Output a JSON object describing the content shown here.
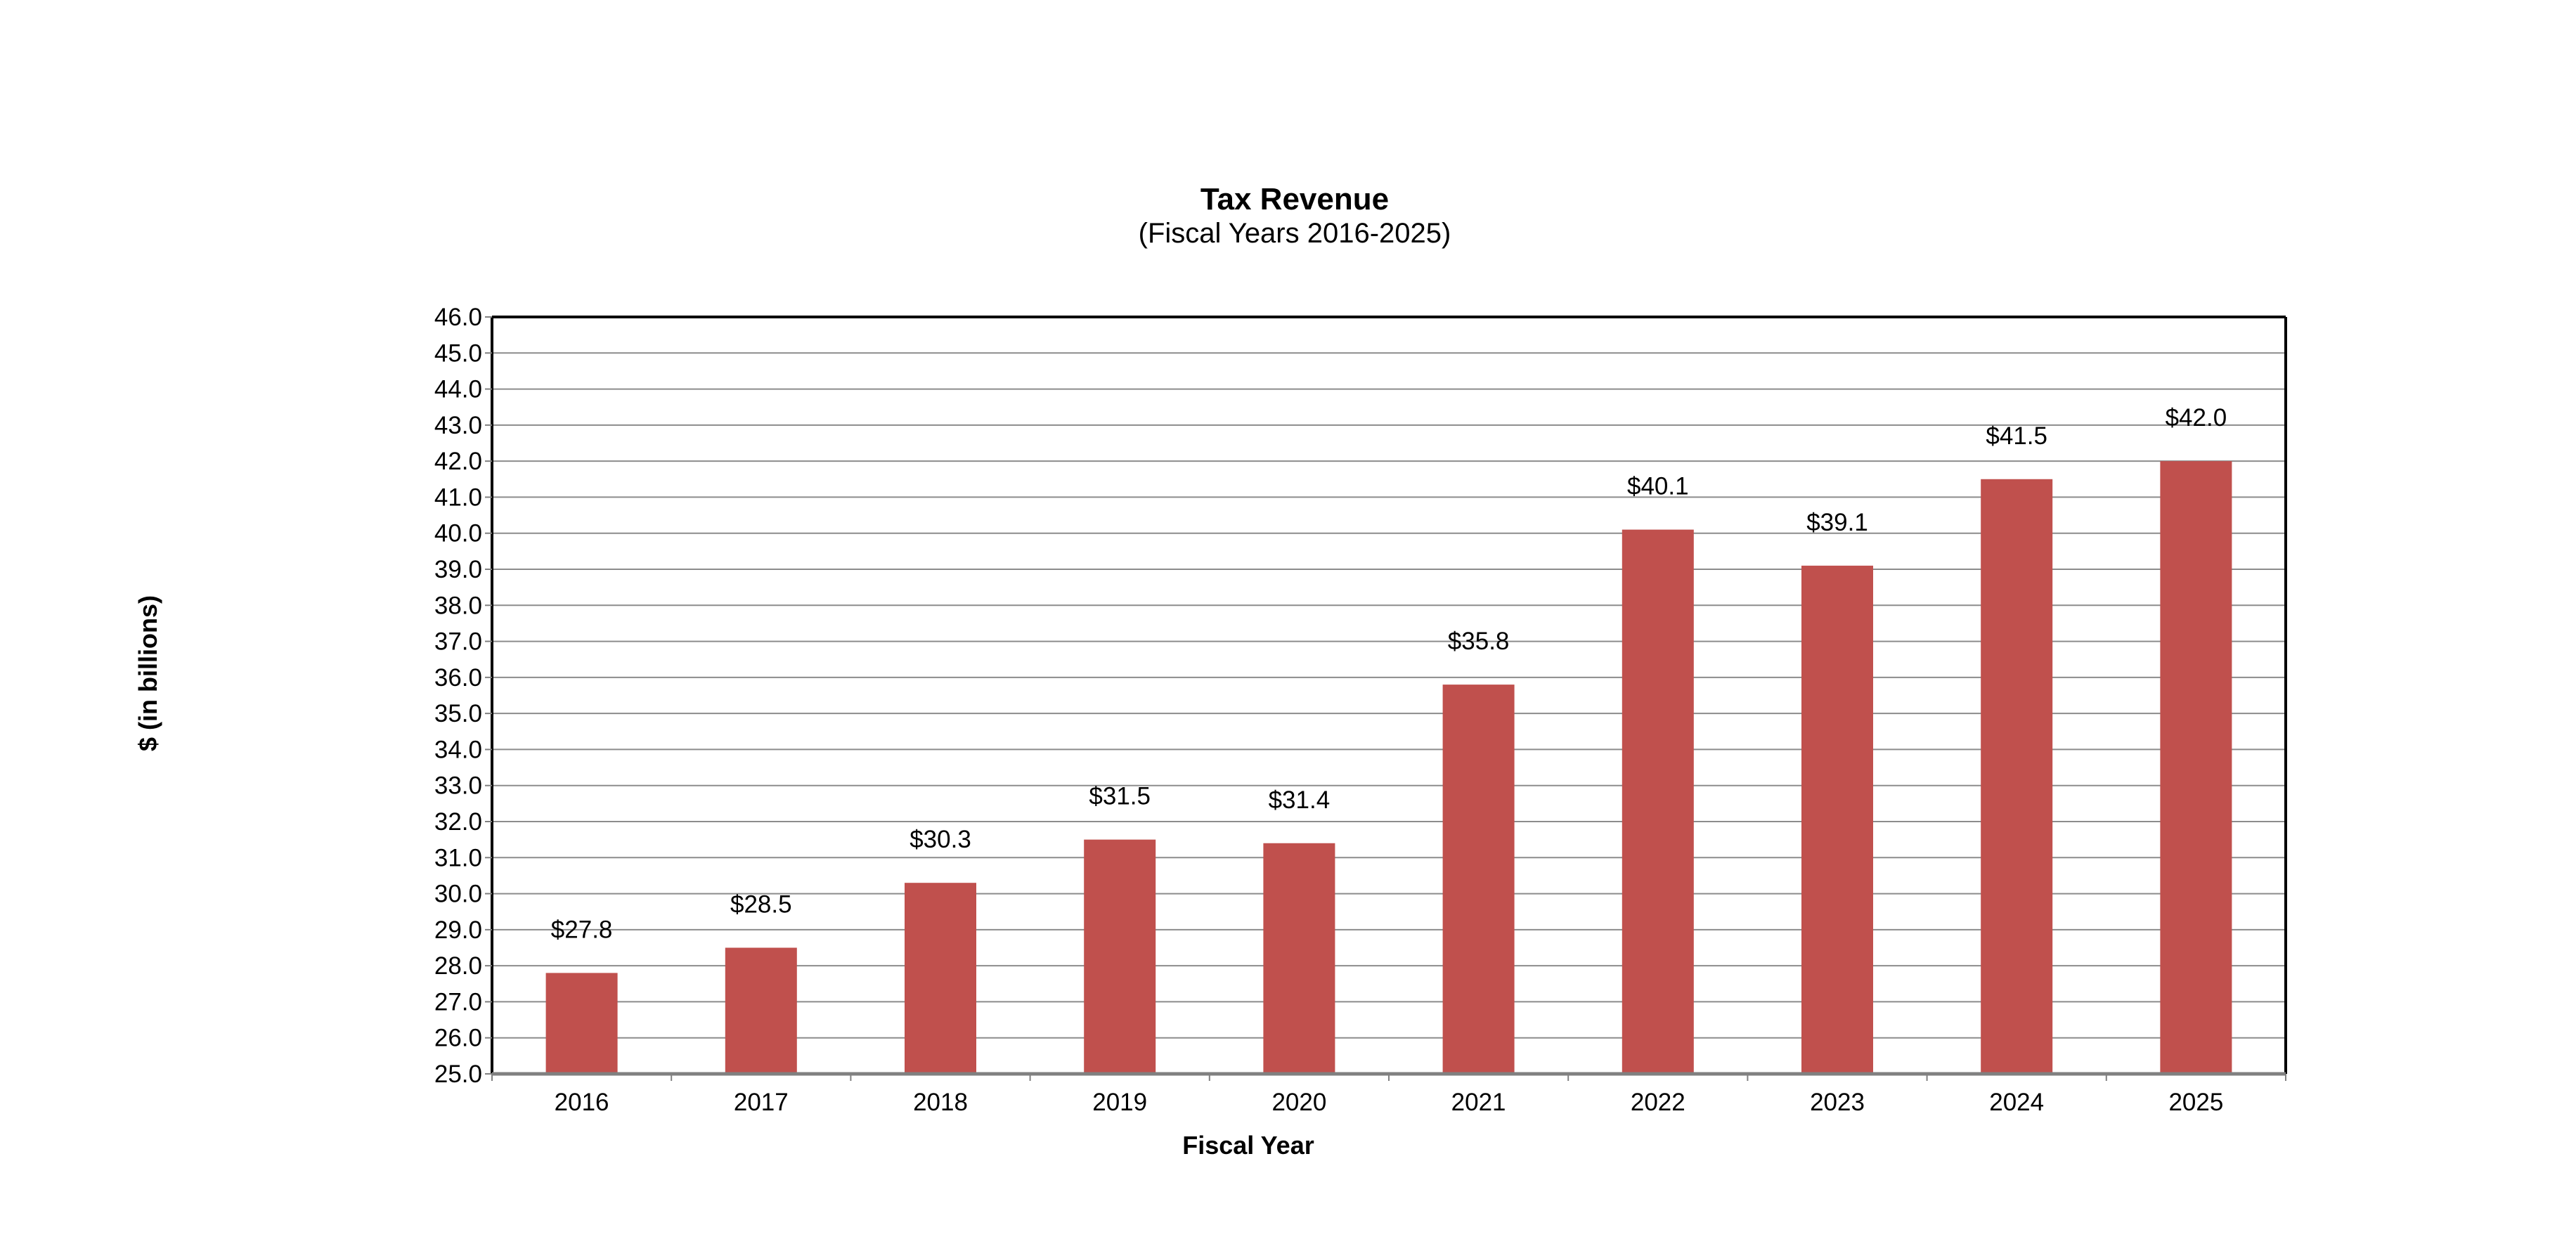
{
  "chart_data": {
    "type": "bar",
    "title": "Tax Revenue",
    "subtitle": "(Fiscal Years 2016-2025)",
    "xlabel": "Fiscal Year",
    "ylabel": "$ (in billions)",
    "categories": [
      "2016",
      "2017",
      "2018",
      "2019",
      "2020",
      "2021",
      "2022",
      "2023",
      "2024",
      "2025"
    ],
    "values": [
      27.8,
      28.5,
      30.3,
      31.5,
      31.4,
      35.8,
      40.1,
      39.1,
      41.5,
      42.0
    ],
    "data_labels": [
      "$27.8",
      "$28.5",
      "$30.3",
      "$31.5",
      "$31.4",
      "$35.8",
      "$40.1",
      "$39.1",
      "$41.5",
      "$42.0"
    ],
    "ylim": [
      25.0,
      46.0
    ],
    "y_ticks": [
      "25.0",
      "26.0",
      "27.0",
      "28.0",
      "29.0",
      "30.0",
      "31.0",
      "32.0",
      "33.0",
      "34.0",
      "35.0",
      "36.0",
      "37.0",
      "38.0",
      "39.0",
      "40.0",
      "41.0",
      "42.0",
      "43.0",
      "44.0",
      "45.0",
      "46.0"
    ],
    "grid": true,
    "legend": "none",
    "colors": {
      "bar": "#C0504D",
      "gridline": "#8C8C8C",
      "frame": "#000000",
      "axis": "#808080"
    }
  }
}
